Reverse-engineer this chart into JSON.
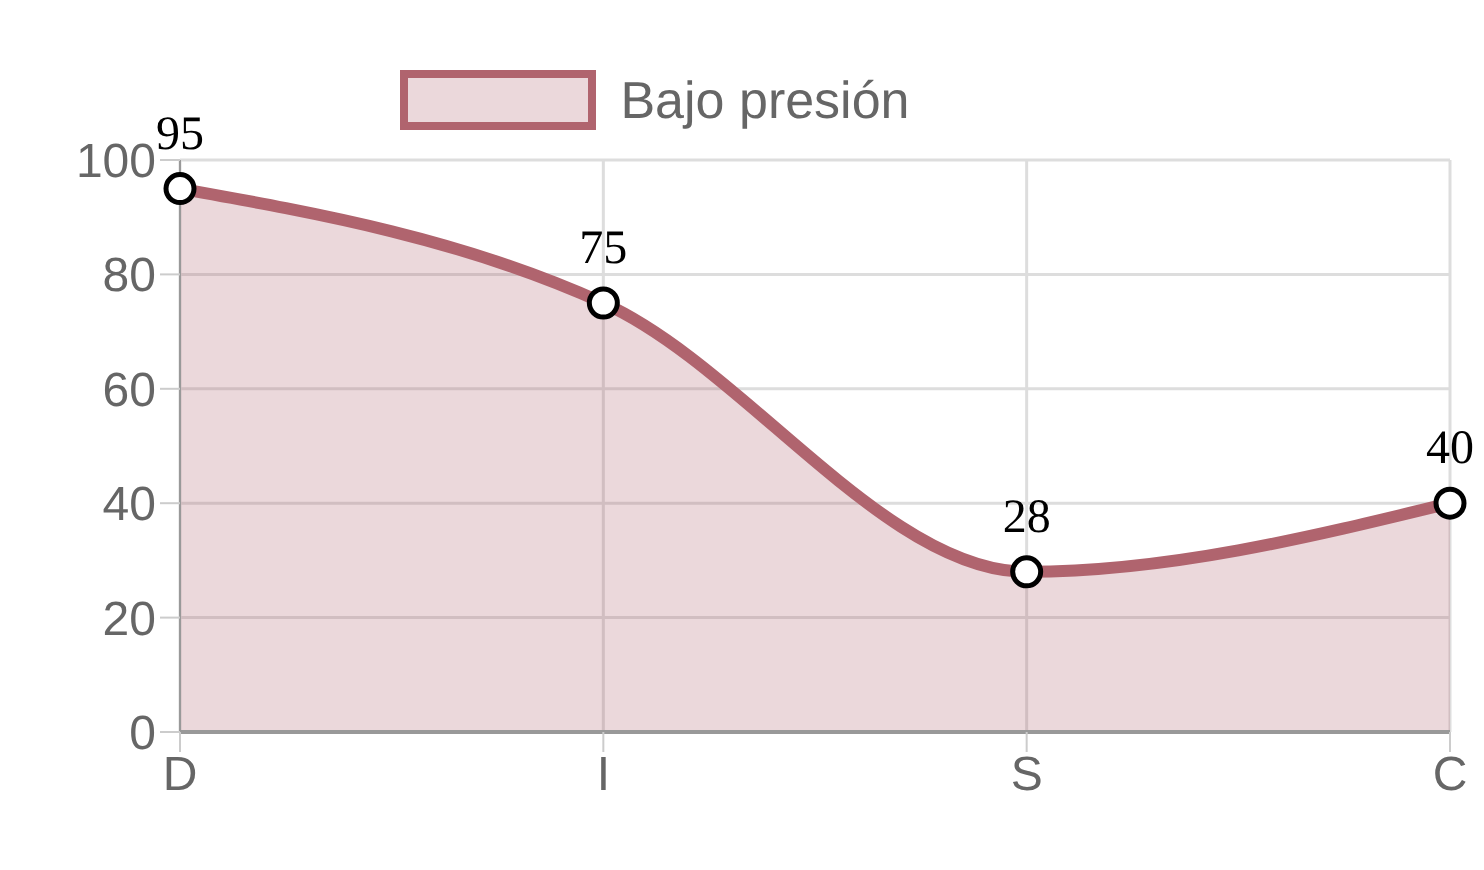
{
  "chart_data": {
    "type": "area",
    "categories": [
      "D",
      "I",
      "S",
      "C"
    ],
    "series": [
      {
        "name": "Bajo presión",
        "color": "#b0646e",
        "values": [
          95,
          75,
          28,
          40
        ]
      }
    ],
    "ylim": [
      0,
      100
    ],
    "yticks": [
      0,
      20,
      40,
      60,
      80,
      100
    ],
    "grid": true,
    "legend": "top",
    "marker": "circle",
    "data_labels": true
  }
}
